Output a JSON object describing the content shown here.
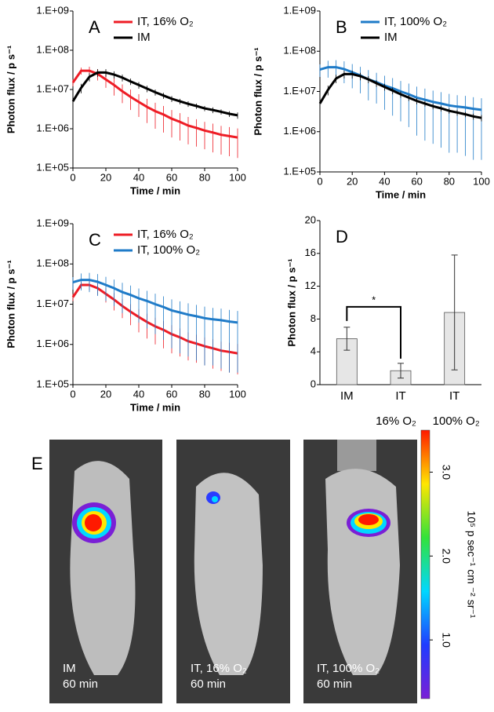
{
  "chart_data": [
    {
      "type": "line",
      "panel_label": "A",
      "log_y": true,
      "x_label": "Time / min",
      "y_label": "Photon flux / p s⁻¹",
      "x": [
        0,
        5,
        10,
        15,
        20,
        25,
        30,
        35,
        40,
        45,
        50,
        55,
        60,
        65,
        70,
        75,
        80,
        85,
        90,
        95,
        100
      ],
      "xlim": [
        0,
        100
      ],
      "xticks": [
        0,
        20,
        40,
        60,
        80,
        100
      ],
      "ylim": [
        100000,
        1000000000
      ],
      "yticks": [
        {
          "value": 100000,
          "label": "1.E+05"
        },
        {
          "value": 1000000,
          "label": "1.E+06"
        },
        {
          "value": 10000000,
          "label": "1.E+07"
        },
        {
          "value": 100000000,
          "label": "1.E+08"
        },
        {
          "value": 1000000000,
          "label": "1.E+09"
        }
      ],
      "series": [
        {
          "name": "IT, 16% O₂",
          "color": "#ee1c25",
          "values": [
            15000000,
            30000000,
            30000000,
            25000000,
            18000000,
            13000000,
            9000000,
            6500000,
            4800000,
            3600000,
            2800000,
            2300000,
            1800000,
            1500000,
            1200000,
            1050000,
            900000,
            800000,
            700000,
            650000,
            600000
          ],
          "errors": [
            3000000,
            6000000,
            8000000,
            8000000,
            7000000,
            6000000,
            4500000,
            3500000,
            2800000,
            2200000,
            1800000,
            1500000,
            1200000,
            1000000,
            800000,
            700000,
            600000,
            550000,
            480000,
            450000,
            420000
          ]
        },
        {
          "name": "IM",
          "color": "#000000",
          "values": [
            5000000,
            11000000,
            21000000,
            27000000,
            27000000,
            24000000,
            20000000,
            16000000,
            13000000,
            10500000,
            8500000,
            7000000,
            5800000,
            5000000,
            4300000,
            3800000,
            3300000,
            3000000,
            2700000,
            2400000,
            2200000
          ],
          "errors": [
            1500000,
            3000000,
            5000000,
            6000000,
            6000000,
            5000000,
            4000000,
            3000000,
            2500000,
            2000000,
            1500000,
            1200000,
            1000000,
            800000,
            700000,
            600000,
            500000,
            500000,
            400000,
            400000,
            400000
          ]
        }
      ]
    },
    {
      "type": "line",
      "panel_label": "B",
      "log_y": true,
      "x_label": "Time / min",
      "y_label": "Photon flux / p s⁻¹",
      "x": [
        0,
        5,
        10,
        15,
        20,
        25,
        30,
        35,
        40,
        45,
        50,
        55,
        60,
        65,
        70,
        75,
        80,
        85,
        90,
        95,
        100
      ],
      "xlim": [
        0,
        100
      ],
      "xticks": [
        0,
        20,
        40,
        60,
        80,
        100
      ],
      "ylim": [
        100000,
        1000000000
      ],
      "yticks": [
        {
          "value": 100000,
          "label": "1.E+05"
        },
        {
          "value": 1000000,
          "label": "1.E+06"
        },
        {
          "value": 10000000,
          "label": "1.E+07"
        },
        {
          "value": 100000000,
          "label": "1.E+08"
        },
        {
          "value": 1000000000,
          "label": "1.E+09"
        }
      ],
      "series": [
        {
          "name": "IT, 100% O₂",
          "color": "#1f7bc8",
          "values": [
            35000000,
            40000000,
            40000000,
            36000000,
            30000000,
            25000000,
            20000000,
            17000000,
            14000000,
            12000000,
            10000000,
            8500000,
            7000000,
            6200000,
            5500000,
            5000000,
            4500000,
            4200000,
            4000000,
            3700000,
            3500000
          ],
          "errors": [
            12000000,
            18000000,
            20000000,
            20000000,
            18000000,
            16000000,
            14000000,
            12000000,
            10500000,
            9500000,
            8200000,
            7200000,
            6200000,
            5600000,
            5000000,
            4600000,
            4200000,
            3900000,
            3750000,
            3500000,
            3300000
          ]
        },
        {
          "name": "IM",
          "color": "#000000",
          "values": [
            5000000,
            11000000,
            21000000,
            27000000,
            27000000,
            24000000,
            20000000,
            16000000,
            13000000,
            10500000,
            8500000,
            7000000,
            5800000,
            5000000,
            4300000,
            3800000,
            3300000,
            3000000,
            2700000,
            2400000,
            2200000
          ],
          "errors": [
            1500000,
            3000000,
            5000000,
            6000000,
            6000000,
            5000000,
            4000000,
            3000000,
            2500000,
            2000000,
            1500000,
            1200000,
            1000000,
            800000,
            700000,
            600000,
            500000,
            500000,
            400000,
            400000,
            400000
          ]
        }
      ]
    },
    {
      "type": "line",
      "panel_label": "C",
      "log_y": true,
      "x_label": "Time / min",
      "y_label": "Photon flux / p s⁻¹",
      "x": [
        0,
        5,
        10,
        15,
        20,
        25,
        30,
        35,
        40,
        45,
        50,
        55,
        60,
        65,
        70,
        75,
        80,
        85,
        90,
        95,
        100
      ],
      "xlim": [
        0,
        100
      ],
      "xticks": [
        0,
        20,
        40,
        60,
        80,
        100
      ],
      "ylim": [
        100000,
        1000000000
      ],
      "yticks": [
        {
          "value": 100000,
          "label": "1.E+05"
        },
        {
          "value": 1000000,
          "label": "1.E+06"
        },
        {
          "value": 10000000,
          "label": "1.E+07"
        },
        {
          "value": 100000000,
          "label": "1.E+08"
        },
        {
          "value": 1000000000,
          "label": "1.E+09"
        }
      ],
      "series": [
        {
          "name": "IT, 16% O₂",
          "color": "#ee1c25",
          "values": [
            15000000,
            30000000,
            30000000,
            25000000,
            18000000,
            13000000,
            9000000,
            6500000,
            4800000,
            3600000,
            2800000,
            2300000,
            1800000,
            1500000,
            1200000,
            1050000,
            900000,
            800000,
            700000,
            650000,
            600000
          ],
          "errors": [
            3000000,
            6000000,
            8000000,
            8000000,
            7000000,
            6000000,
            4500000,
            3500000,
            2800000,
            2200000,
            1800000,
            1500000,
            1200000,
            1000000,
            800000,
            700000,
            600000,
            550000,
            480000,
            450000,
            420000
          ]
        },
        {
          "name": "IT, 100% O₂",
          "color": "#1f7bc8",
          "values": [
            35000000,
            40000000,
            40000000,
            36000000,
            30000000,
            25000000,
            20000000,
            17000000,
            14000000,
            12000000,
            10000000,
            8500000,
            7000000,
            6200000,
            5500000,
            5000000,
            4500000,
            4200000,
            4000000,
            3700000,
            3500000
          ],
          "errors": [
            12000000,
            18000000,
            20000000,
            20000000,
            18000000,
            16000000,
            14000000,
            12000000,
            10500000,
            9500000,
            8200000,
            7200000,
            6200000,
            5600000,
            5000000,
            4600000,
            4200000,
            3900000,
            3750000,
            3500000,
            3300000
          ]
        }
      ]
    },
    {
      "type": "bar",
      "panel_label": "D",
      "y_label": "Photon flux / p s⁻¹",
      "color": "#e6e6e6",
      "categories": [
        "IM",
        "IT",
        "IT"
      ],
      "sublabels": [
        null,
        "16% O₂",
        "100% O₂"
      ],
      "values": [
        5.6,
        1.7,
        8.8
      ],
      "errors": [
        1.4,
        0.9,
        7.0
      ],
      "ylim": [
        0,
        20
      ],
      "yticks": [
        0,
        4,
        8,
        12,
        16,
        20
      ],
      "annotation": "*"
    }
  ],
  "image_panel": {
    "panel_label": "E",
    "images": [
      {
        "label": "IM",
        "time": "60 min"
      },
      {
        "label": "IT, 16% O₂",
        "time": "60 min"
      },
      {
        "label": "IT, 100% O₂",
        "time": "60 min"
      }
    ],
    "colorbar": {
      "label": "10⁵ p sec⁻¹ cm ⁻² sr⁻¹",
      "lim": [
        0.3,
        3.5
      ],
      "ticks": [
        {
          "value": 1,
          "label": "1.0"
        },
        {
          "value": 2,
          "label": "2.0"
        },
        {
          "value": 3,
          "label": "3.0"
        }
      ]
    }
  }
}
